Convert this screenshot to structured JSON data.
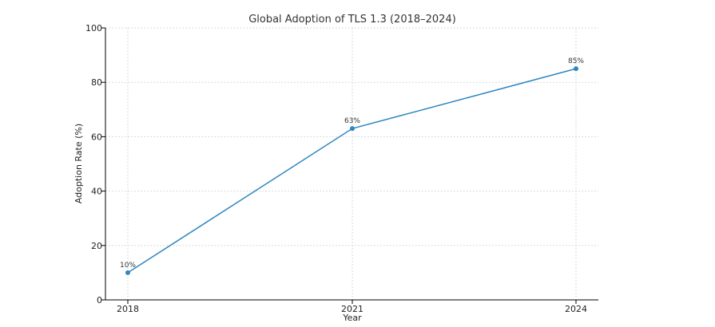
{
  "chart_data": {
    "type": "line",
    "title": "Global Adoption of TLS 1.3 (2018–2024)",
    "xlabel": "Year",
    "ylabel": "Adoption Rate (%)",
    "x": [
      "2018",
      "2021",
      "2024"
    ],
    "series": [
      {
        "values": [
          10,
          63,
          85
        ],
        "data_labels": [
          "10%",
          "63%",
          "85%"
        ],
        "color": "#2f86c0"
      }
    ],
    "ylim": [
      0,
      100
    ],
    "yticks": [
      "0",
      "20",
      "40",
      "60",
      "80",
      "100"
    ],
    "grid": true
  }
}
